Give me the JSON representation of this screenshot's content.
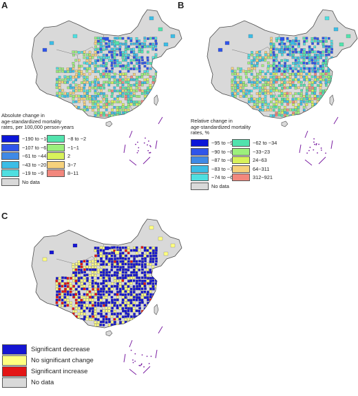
{
  "panels": [
    {
      "letter": "A",
      "legend_title": [
        "Absolute change in",
        "age-standardized mortality",
        "rates, per 100,000 person-years"
      ],
      "legend": [
        {
          "label": "−190 to −108",
          "color": "#0b16d8"
        },
        {
          "label": "−107 to −62",
          "color": "#2f55ea"
        },
        {
          "label": "−61 to −44",
          "color": "#3f8ae6"
        },
        {
          "label": "−43 to −20",
          "color": "#3cbde6"
        },
        {
          "label": "−19 to −9",
          "color": "#4fdfe0"
        },
        {
          "label": "−8 to −2",
          "color": "#52e3ad"
        },
        {
          "label": "−1−1",
          "color": "#9cef7c"
        },
        {
          "label": "2",
          "color": "#d8f25a"
        },
        {
          "label": "3−7",
          "color": "#f6d27c"
        },
        {
          "label": "8−11",
          "color": "#f2877d"
        },
        {
          "label": "No data",
          "color": "#d9d9d9"
        }
      ]
    },
    {
      "letter": "B",
      "legend_title": [
        "Relative change in",
        "age-standardized mortality",
        "rates, %"
      ],
      "legend": [
        {
          "label": "−95 to −91",
          "color": "#0b16d8"
        },
        {
          "label": "−90 to −88",
          "color": "#2f55ea"
        },
        {
          "label": "−87 to −84",
          "color": "#3f8ae6"
        },
        {
          "label": "−83 to −75",
          "color": "#3cbde6"
        },
        {
          "label": "−74 to −63",
          "color": "#4fdfe0"
        },
        {
          "label": "−62 to −34",
          "color": "#52e3ad"
        },
        {
          "label": "−33−23",
          "color": "#9cef7c"
        },
        {
          "label": "24−63",
          "color": "#d8f25a"
        },
        {
          "label": "64−311",
          "color": "#f6d27c"
        },
        {
          "label": "312−921",
          "color": "#f2877d"
        },
        {
          "label": "No data",
          "color": "#d9d9d9"
        }
      ]
    },
    {
      "letter": "C",
      "legend": [
        {
          "label": "Significant decrease",
          "color": "#1515d2"
        },
        {
          "label": "No significant change",
          "color": "#ffff80"
        },
        {
          "label": "Significant increase",
          "color": "#e31515"
        },
        {
          "label": "No data",
          "color": "#d9d9d9"
        }
      ]
    }
  ],
  "map_colors": {
    "land": "#d9d9d9",
    "border": "#4a4a4a",
    "district_line": "#777777",
    "islands": "#7b1fa2"
  }
}
